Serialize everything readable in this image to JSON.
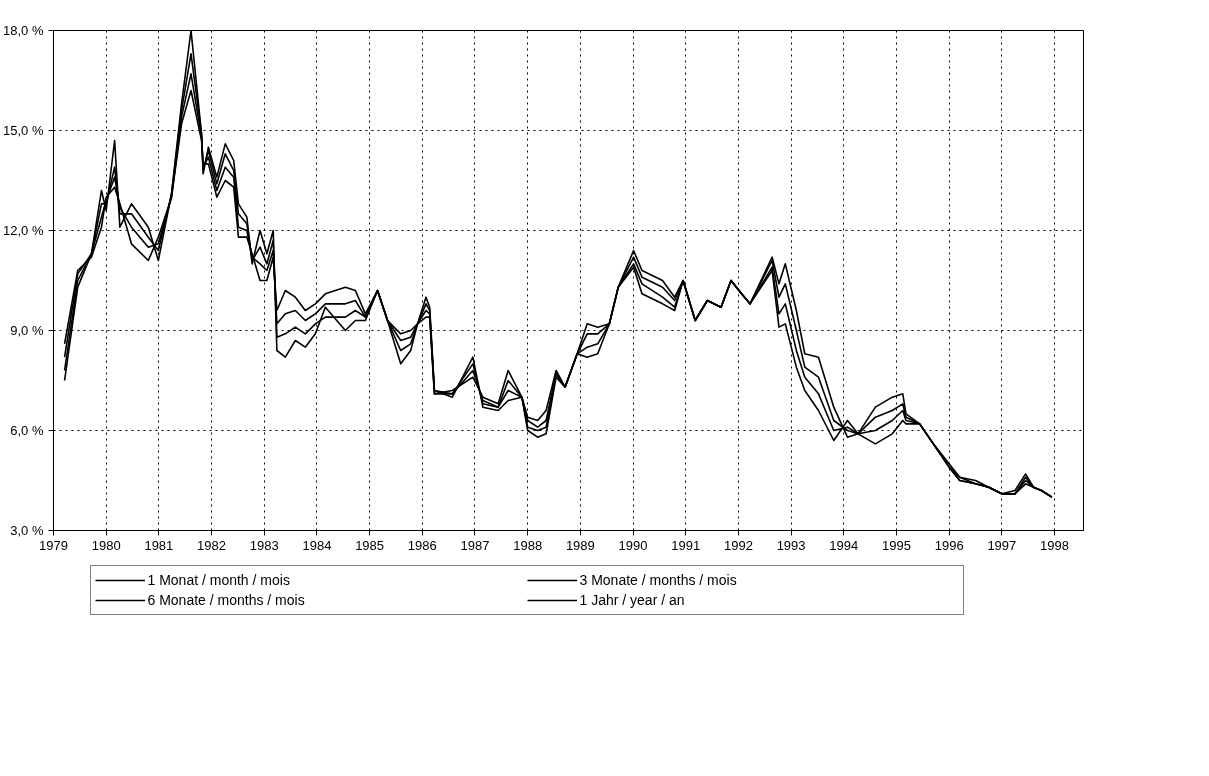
{
  "chart_data": {
    "type": "line",
    "x": [
      1979.21,
      1979.46,
      1979.72,
      1979.91,
      1980.0,
      1980.16,
      1980.26,
      1980.48,
      1980.8,
      1980.99,
      1981.24,
      1981.43,
      1981.61,
      1981.81,
      1981.84,
      1981.94,
      1982.1,
      1982.26,
      1982.42,
      1982.51,
      1982.67,
      1982.77,
      1982.92,
      1983.05,
      1983.17,
      1983.24,
      1983.4,
      1983.59,
      1983.78,
      1983.97,
      1984.16,
      1984.54,
      1984.73,
      1984.92,
      1985.15,
      1985.34,
      1985.59,
      1985.78,
      1985.91,
      1986.07,
      1986.14,
      1986.23,
      1986.57,
      1986.96,
      1987.15,
      1987.44,
      1987.63,
      1987.89,
      1988.0,
      1988.19,
      1988.35,
      1988.54,
      1988.71,
      1988.94,
      1989.13,
      1989.33,
      1989.55,
      1989.72,
      1990.01,
      1990.17,
      1990.56,
      1990.79,
      1990.95,
      1991.18,
      1991.41,
      1991.67,
      1991.86,
      1992.06,
      1992.22,
      1992.64,
      1992.77,
      1992.89,
      1993.1,
      1993.26,
      1993.52,
      1993.81,
      1994.07,
      1994.27,
      1994.6,
      1994.92,
      1995.12,
      1995.18,
      1995.44,
      1995.7,
      1996.0,
      1996.2,
      1996.5,
      1996.75,
      1997.0,
      1997.25,
      1997.45,
      1997.6,
      1997.75,
      1997.95
    ],
    "series": [
      {
        "name": "1 Monat / month / mois",
        "color": "#000000",
        "values": [
          7.5,
          10.3,
          11.3,
          13.2,
          12.6,
          14.7,
          12.1,
          12.8,
          12.1,
          11.1,
          13.1,
          15.8,
          18.0,
          14.9,
          13.7,
          14.5,
          13.6,
          14.6,
          14.1,
          12.8,
          12.4,
          11.0,
          12.0,
          11.3,
          12.0,
          8.4,
          8.2,
          8.7,
          8.5,
          8.9,
          9.7,
          9.0,
          9.3,
          9.3,
          10.2,
          9.3,
          8.0,
          8.4,
          9.2,
          10.0,
          9.7,
          7.2,
          7.0,
          8.2,
          6.7,
          6.6,
          6.9,
          7.0,
          6.0,
          5.8,
          5.9,
          7.6,
          7.3,
          8.3,
          8.2,
          8.3,
          9.2,
          10.3,
          11.4,
          10.8,
          10.5,
          10.0,
          10.5,
          9.3,
          9.9,
          9.7,
          10.5,
          10.1,
          9.8,
          11.2,
          10.4,
          11.0,
          9.6,
          8.3,
          8.2,
          6.7,
          5.8,
          5.9,
          5.6,
          5.9,
          6.3,
          6.2,
          6.2,
          5.6,
          5.0,
          4.6,
          4.5,
          4.3,
          4.1,
          4.1,
          4.4,
          4.3,
          4.2,
          4.0
        ]
      },
      {
        "name": "3 Monate / months / mois",
        "color": "#000000",
        "values": [
          7.8,
          10.5,
          11.3,
          12.8,
          12.8,
          13.9,
          12.5,
          12.5,
          11.8,
          11.4,
          13.1,
          15.6,
          17.3,
          14.9,
          13.8,
          14.4,
          13.4,
          14.3,
          13.8,
          12.5,
          12.2,
          11.1,
          11.5,
          11.0,
          11.7,
          8.8,
          8.9,
          9.1,
          8.9,
          9.2,
          9.4,
          9.4,
          9.6,
          9.4,
          10.2,
          9.3,
          8.4,
          8.6,
          9.2,
          9.8,
          9.6,
          7.2,
          7.1,
          8.0,
          6.8,
          6.7,
          7.2,
          7.0,
          6.1,
          6.0,
          6.1,
          7.7,
          7.3,
          8.3,
          8.5,
          8.6,
          9.2,
          10.3,
          11.2,
          10.6,
          10.3,
          9.9,
          10.5,
          9.3,
          9.9,
          9.7,
          10.5,
          10.1,
          9.8,
          11.1,
          10.0,
          10.4,
          9.0,
          7.9,
          7.6,
          6.3,
          6.0,
          5.9,
          6.0,
          6.3,
          6.6,
          6.3,
          6.2,
          5.6,
          4.9,
          4.6,
          4.4,
          4.3,
          4.1,
          4.1,
          4.5,
          4.3,
          4.2,
          4.0
        ]
      },
      {
        "name": "6 Monate / months / mois",
        "color": "#000000",
        "values": [
          8.2,
          10.7,
          11.3,
          12.4,
          12.9,
          13.6,
          12.7,
          12.1,
          11.5,
          11.6,
          13.0,
          15.4,
          16.7,
          14.8,
          13.9,
          14.2,
          13.2,
          13.9,
          13.6,
          12.1,
          12.0,
          11.2,
          11.0,
          10.8,
          11.4,
          9.2,
          9.5,
          9.6,
          9.3,
          9.5,
          9.8,
          9.8,
          9.9,
          9.4,
          10.2,
          9.3,
          8.7,
          8.8,
          9.2,
          9.6,
          9.5,
          7.1,
          7.1,
          7.8,
          6.9,
          6.7,
          7.5,
          7.0,
          6.3,
          6.1,
          6.3,
          7.7,
          7.3,
          8.3,
          8.9,
          8.9,
          9.2,
          10.3,
          11.0,
          10.4,
          10.0,
          9.7,
          10.5,
          9.3,
          9.9,
          9.7,
          10.5,
          10.1,
          9.8,
          10.9,
          9.5,
          9.8,
          8.4,
          7.6,
          7.1,
          6.0,
          6.1,
          5.9,
          6.4,
          6.6,
          6.8,
          6.4,
          6.2,
          5.6,
          4.9,
          4.5,
          4.4,
          4.3,
          4.1,
          4.1,
          4.6,
          4.3,
          4.2,
          4.0
        ]
      },
      {
        "name": "1 Jahr / year / an",
        "color": "#000000",
        "values": [
          8.6,
          10.8,
          11.2,
          12.1,
          13.0,
          13.3,
          12.8,
          11.6,
          11.1,
          11.8,
          13.0,
          15.2,
          16.2,
          14.7,
          14.0,
          14.0,
          13.0,
          13.5,
          13.3,
          11.8,
          11.8,
          11.3,
          10.5,
          10.5,
          11.2,
          9.6,
          10.2,
          10.0,
          9.6,
          9.8,
          10.1,
          10.3,
          10.2,
          9.5,
          10.2,
          9.3,
          8.9,
          9.0,
          9.2,
          9.4,
          9.4,
          7.1,
          7.2,
          7.6,
          7.0,
          6.8,
          7.8,
          7.0,
          6.4,
          6.3,
          6.6,
          7.8,
          7.3,
          8.3,
          9.2,
          9.1,
          9.2,
          10.3,
          10.9,
          10.1,
          9.8,
          9.6,
          10.5,
          9.3,
          9.9,
          9.7,
          10.5,
          10.1,
          9.8,
          10.8,
          9.1,
          9.2,
          7.9,
          7.2,
          6.6,
          5.7,
          6.3,
          5.9,
          6.7,
          7.0,
          7.1,
          6.5,
          6.2,
          5.6,
          4.9,
          4.5,
          4.4,
          4.3,
          4.1,
          4.2,
          4.7,
          4.3,
          4.2,
          4.0
        ]
      }
    ],
    "xlim": [
      1979,
      1998.55
    ],
    "xticks": [
      1979,
      1980,
      1981,
      1982,
      1983,
      1984,
      1985,
      1986,
      1987,
      1988,
      1989,
      1990,
      1991,
      1992,
      1993,
      1994,
      1995,
      1996,
      1997,
      1998
    ],
    "ylim": [
      3,
      18
    ],
    "yticks": [
      {
        "value": 3,
        "label": "3,0 %"
      },
      {
        "value": 6,
        "label": "6,0 %"
      },
      {
        "value": 9,
        "label": "9,0 %"
      },
      {
        "value": 12,
        "label": "12,0 %"
      },
      {
        "value": 15,
        "label": "15,0 %"
      },
      {
        "value": 18,
        "label": "18,0 %"
      }
    ],
    "grid": true,
    "legend": "bottom",
    "line_style": "solid",
    "marker": "none"
  }
}
